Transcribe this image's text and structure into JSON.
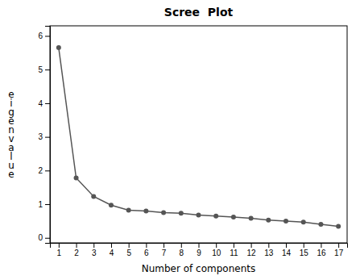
{
  "chart_data": {
    "type": "line",
    "title": "Scree  Plot",
    "xlabel": "Number of components",
    "ylabel": "eigenvalue",
    "x": [
      1,
      2,
      3,
      4,
      5,
      6,
      7,
      8,
      9,
      10,
      11,
      12,
      13,
      14,
      15,
      16,
      17
    ],
    "values": [
      5.65,
      1.78,
      1.23,
      0.97,
      0.82,
      0.8,
      0.75,
      0.73,
      0.68,
      0.65,
      0.62,
      0.58,
      0.53,
      0.5,
      0.47,
      0.4,
      0.34
    ],
    "color": "#555555",
    "marker": "circle",
    "xlim": [
      0.5,
      17.5
    ],
    "ylim": [
      -0.15,
      6.3
    ],
    "xticks": [
      1,
      2,
      3,
      4,
      5,
      6,
      7,
      8,
      9,
      10,
      11,
      12,
      13,
      14,
      15,
      16,
      17
    ],
    "yticks": [
      0,
      1,
      2,
      3,
      4,
      5,
      6
    ],
    "grid": false
  }
}
